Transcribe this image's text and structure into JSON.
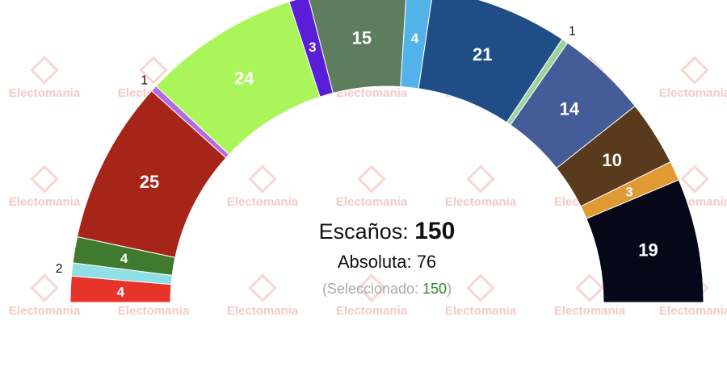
{
  "watermark": "Electomania",
  "center": {
    "seats_label": "Escaños:",
    "seats_total": "150",
    "majority_label": "Absoluta:",
    "majority_value": "76",
    "selected_prefix": "(Seleccionado: ",
    "selected_value": "150",
    "selected_suffix": ")"
  },
  "chart_data": {
    "type": "parliament",
    "total_seats": 150,
    "majority": 76,
    "selected": 150,
    "segments": [
      {
        "value": 4,
        "label": "4",
        "color": "#e6342a",
        "label_inside": true
      },
      {
        "value": 2,
        "label": "2",
        "color": "#8ee0e6",
        "label_inside": false
      },
      {
        "value": 4,
        "label": "4",
        "color": "#3f7a2f",
        "label_inside": true
      },
      {
        "value": 25,
        "label": "25",
        "color": "#a72418",
        "label_inside": true
      },
      {
        "value": 1,
        "label": "1",
        "color": "#b46be0",
        "label_inside": false
      },
      {
        "value": 24,
        "label": "24",
        "color": "#aaf55a",
        "label_inside": true
      },
      {
        "value": 3,
        "label": "3",
        "color": "#5b1ed8",
        "label_inside": true
      },
      {
        "value": 15,
        "label": "15",
        "color": "#5e7d5e",
        "label_inside": true
      },
      {
        "value": 4,
        "label": "4",
        "color": "#52b3ea",
        "label_inside": true
      },
      {
        "value": 21,
        "label": "21",
        "color": "#1f4d86",
        "label_inside": true
      },
      {
        "value": 1,
        "label": "1",
        "color": "#9fd39b",
        "label_inside": false
      },
      {
        "value": 14,
        "label": "14",
        "color": "#455c99",
        "label_inside": true
      },
      {
        "value": 10,
        "label": "10",
        "color": "#5a3a1c",
        "label_inside": true
      },
      {
        "value": 3,
        "label": "3",
        "color": "#e09a34",
        "label_inside": true
      },
      {
        "value": 19,
        "label": "19",
        "color": "#060718",
        "label_inside": true
      }
    ]
  }
}
